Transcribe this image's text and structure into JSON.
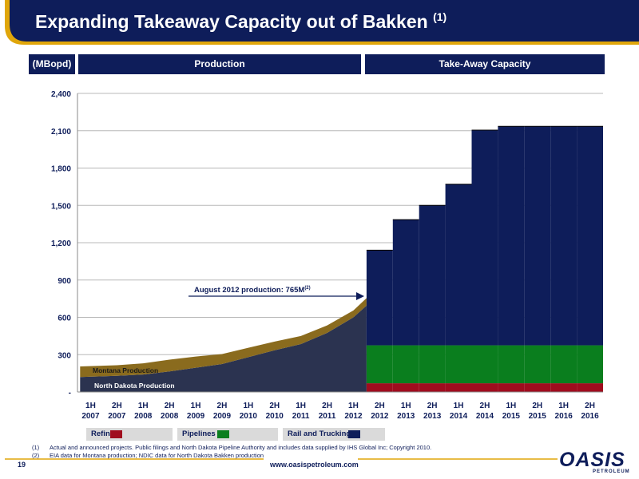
{
  "header": {
    "title": "Expanding Takeaway Capacity out of Bakken",
    "title_sup": "(1)",
    "unit_box": "(MBopd)",
    "production_box": "Production",
    "takeaway_box": "Take-Away Capacity"
  },
  "colors": {
    "navy": "#0e1d5a",
    "green": "#0a7e1e",
    "red": "#a00c1e",
    "production_dark": "#2b3350",
    "montana_brown": "#8a6b1e"
  },
  "chart_data": {
    "type": "area",
    "categories": [
      "1H 2007",
      "2H 2007",
      "1H 2008",
      "2H 2008",
      "1H 2009",
      "2H 2009",
      "1H 2010",
      "2H 2010",
      "1H 2011",
      "2H 2011",
      "1H 2012",
      "2H 2012",
      "1H 2013",
      "2H 2013",
      "1H 2014",
      "2H 2014",
      "1H 2015",
      "2H 2015",
      "1H 2016",
      "2H 2016"
    ],
    "ylim": [
      0,
      2400
    ],
    "yticks": [
      0,
      300,
      600,
      900,
      1200,
      1500,
      1800,
      2100,
      2400
    ],
    "ytick_labels": [
      "-",
      "300",
      "600",
      "900",
      "1,200",
      "1,500",
      "1,800",
      "2,100",
      "2,400"
    ],
    "production_series": [
      {
        "name": "North Dakota Production",
        "values": [
          120,
          130,
          140,
          165,
          195,
          225,
          280,
          335,
          385,
          475,
          600,
          695
        ]
      },
      {
        "name": "Montana Production",
        "values": [
          85,
          85,
          90,
          95,
          90,
          80,
          75,
          70,
          65,
          60,
          55,
          60
        ]
      }
    ],
    "capacity_categories": [
      "2H 2012",
      "1H 2013",
      "2H 2013",
      "1H 2014",
      "2H 2014",
      "1H 2015",
      "2H 2015",
      "1H 2016",
      "2H 2016"
    ],
    "capacity_series": [
      {
        "name": "Refinery",
        "values": [
          70,
          70,
          70,
          70,
          70,
          70,
          70,
          70,
          70
        ]
      },
      {
        "name": "Pipelines",
        "values": [
          305,
          305,
          305,
          305,
          305,
          305,
          305,
          305,
          305
        ]
      },
      {
        "name": "Rail and Trucking",
        "values": [
          765,
          1010,
          1125,
          1295,
          1730,
          1760,
          1760,
          1760,
          1760
        ]
      }
    ],
    "capacity_totals": [
      1140,
      1385,
      1500,
      1670,
      2105,
      2135,
      2135,
      2135,
      2135
    ],
    "annotation": "August 2012 production: 765M",
    "annotation_sup": "(2)",
    "area_labels": [
      "Montana Production",
      "North Dakota Production"
    ]
  },
  "legend": [
    {
      "label": "Refinery",
      "color": "#a00c1e"
    },
    {
      "label": "Pipelines",
      "color": "#0a7e1e"
    },
    {
      "label": "Rail and Trucking",
      "color": "#0e1d5a"
    }
  ],
  "footnotes": [
    {
      "num": "(1)",
      "text": "Actual and announced projects. Public filings and North Dakota Pipeline Authority and includes data supplied by IHS Global Inc; Copyright 2010."
    },
    {
      "num": "(2)",
      "text": "EIA data for Montana production; NDIC data for North Dakota Bakken production"
    }
  ],
  "footer": {
    "page": "19",
    "url": "www.oasispetroleum.com",
    "logo": "OASIS",
    "logo_sub": "PETROLEUM"
  }
}
